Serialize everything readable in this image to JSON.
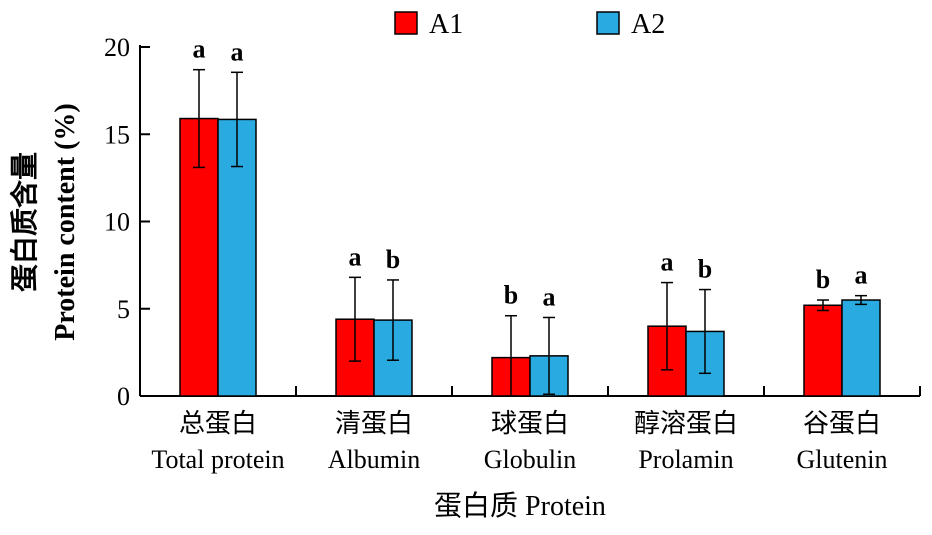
{
  "chart_data": {
    "type": "bar",
    "xlabel": "蛋白质 Protein",
    "ylabel_line1": "蛋白质含量",
    "ylabel_line2": "Protein content (%)",
    "ylim": [
      0,
      20
    ],
    "yticks": [
      0,
      5,
      10,
      15,
      20
    ],
    "categories": [
      {
        "zh": "总蛋白",
        "en": "Total protein"
      },
      {
        "zh": "清蛋白",
        "en": "Albumin"
      },
      {
        "zh": "球蛋白",
        "en": "Globulin"
      },
      {
        "zh": "醇溶蛋白",
        "en": "Prolamin"
      },
      {
        "zh": "谷蛋白",
        "en": "Glutenin"
      }
    ],
    "series": [
      {
        "name": "A1",
        "color": "#ff0000",
        "values": [
          15.9,
          4.4,
          2.2,
          4.0,
          5.2
        ],
        "errors": [
          2.8,
          2.4,
          2.4,
          2.5,
          0.3
        ],
        "labels": [
          "a",
          "a",
          "b",
          "a",
          "b"
        ]
      },
      {
        "name": "A2",
        "color": "#29abe2",
        "values": [
          15.85,
          4.35,
          2.3,
          3.7,
          5.5
        ],
        "errors": [
          2.7,
          2.3,
          2.2,
          2.4,
          0.25
        ],
        "labels": [
          "a",
          "b",
          "a",
          "b",
          "a"
        ]
      }
    ],
    "legend_position": "top"
  }
}
